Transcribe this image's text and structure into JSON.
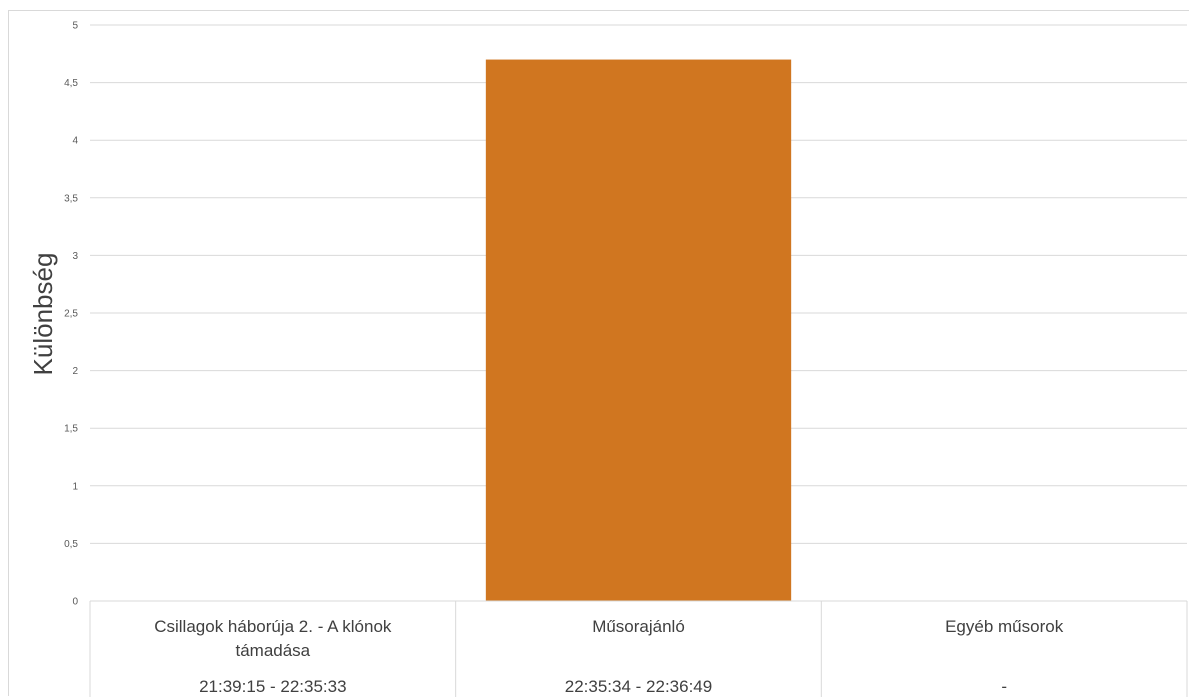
{
  "chart_data": {
    "type": "bar",
    "title": "",
    "xlabel": "",
    "ylabel": "Különbség",
    "ylim": [
      0,
      5
    ],
    "yticks": [
      "0",
      "0,5",
      "1",
      "1,5",
      "2",
      "2,5",
      "3",
      "3,5",
      "4",
      "4,5",
      "5"
    ],
    "grid": true,
    "legend": "none",
    "bar_color": "#d07620",
    "categories": [
      {
        "name_lines": [
          "Csillagok háborúja 2. - A klónok",
          "támadása"
        ],
        "time": "21:39:15 - 22:35:33"
      },
      {
        "name_lines": [
          "Műsorajánló"
        ],
        "time": "22:35:34 - 22:36:49"
      },
      {
        "name_lines": [
          "Egyéb műsorok"
        ],
        "time": "-"
      }
    ],
    "values": [
      0,
      4.7,
      0
    ]
  }
}
